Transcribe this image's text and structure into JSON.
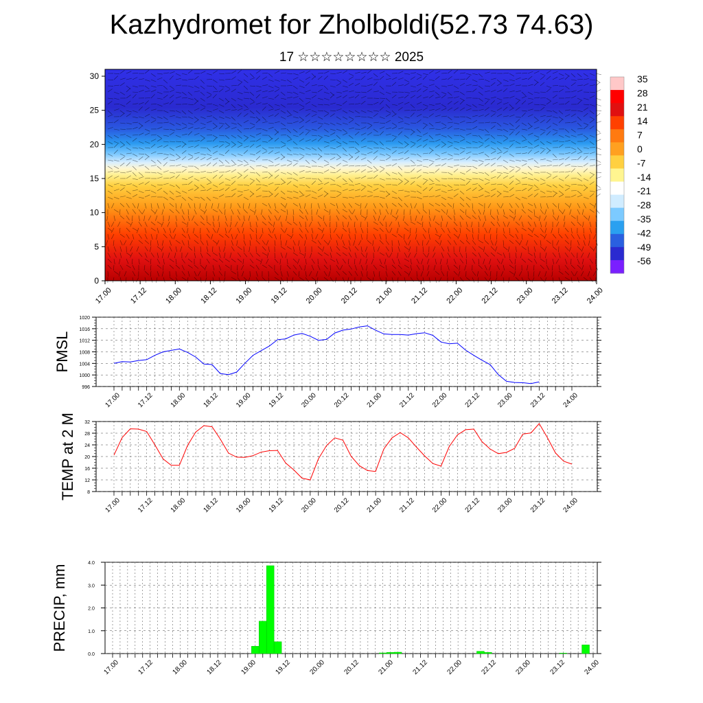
{
  "title": "Kazhydromet for Zholboldi(52.73 74.63)",
  "subtitle": "17 ☆☆☆☆☆☆☆☆ 2025",
  "time_ticks": [
    "17.00",
    "17.12",
    "18.00",
    "18.12",
    "19.00",
    "19.12",
    "20.00",
    "20.12",
    "21.00",
    "21.12",
    "22.00",
    "22.12",
    "23.00",
    "23.12",
    "24.00"
  ],
  "chart_data": [
    {
      "type": "heatmap",
      "name": "cross-section",
      "ylim": [
        0,
        30
      ],
      "yticks": [
        "0",
        "5",
        "10",
        "15",
        "20",
        "25",
        "30"
      ],
      "colorbar": {
        "labels": [
          "35",
          "28",
          "21",
          "14",
          "7",
          "0",
          "-7",
          "-14",
          "-21",
          "-28",
          "-35",
          "-42",
          "-49",
          "-56"
        ],
        "colors": [
          "#7a1fff",
          "#2a2ad8",
          "#1c4cf0",
          "#1a8cff",
          "#3cb8ff",
          "#9ad8ff",
          "#e8f4ff",
          "#fff9c0",
          "#ffe066",
          "#ffbf30",
          "#ff9018",
          "#ff5a0a",
          "#e81808",
          "#b80000",
          "#ffb0b0"
        ]
      }
    },
    {
      "type": "line",
      "ylabel": "PMSL",
      "ylim": [
        996,
        1020
      ],
      "yticks": [
        "996",
        "1000",
        "1004",
        "1008",
        "1012",
        "1016",
        "1020"
      ],
      "color": "#0000ff",
      "values": [
        1004.0,
        1004.6,
        1004.5,
        1005.0,
        1005.3,
        1006.8,
        1008.0,
        1008.5,
        1009.0,
        1007.8,
        1006.2,
        1003.8,
        1003.6,
        1000.5,
        1000.1,
        1001.0,
        1004.0,
        1006.8,
        1008.4,
        1010.0,
        1012.2,
        1012.5,
        1013.8,
        1014.4,
        1013.4,
        1012.0,
        1012.3,
        1014.5,
        1015.5,
        1015.9,
        1016.6,
        1017.0,
        1015.5,
        1014.2,
        1014.0,
        1014.0,
        1013.8,
        1014.3,
        1014.6,
        1013.7,
        1011.4,
        1010.8,
        1011.0,
        1008.6,
        1006.8,
        1005.1,
        1003.6,
        1000.1,
        997.8,
        997.4,
        997.3,
        997.0,
        997.6
      ]
    },
    {
      "type": "line",
      "ylabel": "TEMP at 2 M",
      "ylim": [
        8,
        32
      ],
      "yticks": [
        "8",
        "12",
        "16",
        "20",
        "24",
        "28",
        "32"
      ],
      "color": "#ff0000",
      "values": [
        20.5,
        26.5,
        29.5,
        29.4,
        28.6,
        24.0,
        19.2,
        17.0,
        17.0,
        23.8,
        28.4,
        30.6,
        30.2,
        26.0,
        21.2,
        19.8,
        19.7,
        20.3,
        21.5,
        22.0,
        22.1,
        17.8,
        15.4,
        12.6,
        12.0,
        19.2,
        23.8,
        26.4,
        25.6,
        20.1,
        16.9,
        15.2,
        14.9,
        22.6,
        26.4,
        28.2,
        26.4,
        23.2,
        20.2,
        17.6,
        16.7,
        23.4,
        27.4,
        29.2,
        29.4,
        25.1,
        22.6,
        21.0,
        21.4,
        22.8,
        27.7,
        28.1,
        31.3,
        26.5,
        21.2,
        18.4,
        17.4
      ]
    },
    {
      "type": "bar",
      "ylabel": "PRECIP, mm",
      "ylim": [
        0,
        4
      ],
      "yticks": [
        "0.0",
        "1.0",
        "2.0",
        "3.0",
        "4.0"
      ],
      "color": "#00ff00",
      "bars": [
        {
          "t": 19,
          "v": 0.32
        },
        {
          "t": 20,
          "v": 1.42
        },
        {
          "t": 21,
          "v": 3.85
        },
        {
          "t": 22,
          "v": 0.52
        },
        {
          "t": 36,
          "v": 0.03
        },
        {
          "t": 37,
          "v": 0.05
        },
        {
          "t": 38,
          "v": 0.06
        },
        {
          "t": 49,
          "v": 0.1
        },
        {
          "t": 50,
          "v": 0.05
        },
        {
          "t": 60,
          "v": 0.02
        },
        {
          "t": 63,
          "v": 0.38
        }
      ]
    }
  ]
}
